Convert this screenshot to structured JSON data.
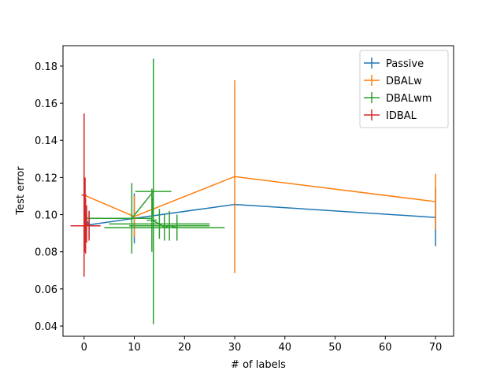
{
  "chart_data": {
    "type": "errorbar",
    "xlabel": "# of labels",
    "ylabel": "Test error",
    "xlim": [
      -4.2,
      73.6
    ],
    "ylim": [
      0.0345,
      0.191
    ],
    "xticks": [
      0,
      10,
      20,
      30,
      40,
      50,
      60,
      70
    ],
    "yticks": [
      0.04,
      0.06,
      0.08,
      {
        "value": 0.1,
        "label": "0.10"
      },
      0.12,
      0.14,
      0.16,
      0.18
    ],
    "legend": "upper right",
    "series": [
      {
        "name": "Passive",
        "color": "#1f77b4",
        "x": [
          0,
          1,
          10,
          30,
          70
        ],
        "values": [
          0.0995,
          0.0945,
          0.098,
          0.1055,
          0.0985
        ],
        "yerr": [
          0.002,
          0.0075,
          0.0135,
          0.001,
          0.0155
        ]
      },
      {
        "name": "DBALw",
        "color": "#ff7f0e",
        "x": [
          0,
          10,
          30,
          70
        ],
        "values": [
          0.1105,
          0.099,
          0.1205,
          0.107
        ],
        "yerr": [
          0.0095,
          0.011,
          0.052,
          0.015
        ]
      },
      {
        "name": "DBALwm",
        "color": "#2ca02c",
        "x": [
          0.5,
          9.5,
          13.8,
          13.5,
          15,
          16,
          17,
          18.5
        ],
        "values": [
          0.098,
          0.098,
          0.1125,
          0.097,
          0.095,
          0.093,
          0.094,
          0.093
        ],
        "yerr": [
          0.002,
          0.019,
          0.0715,
          0.017,
          0.008,
          0.007,
          0.008,
          0.007
        ],
        "xerr": [
          0.5,
          4,
          3.6,
          1,
          10,
          12,
          8,
          0.3
        ]
      },
      {
        "name": "IDBAL",
        "color": "#d62728",
        "x": [
          0,
          0.2,
          0.3,
          0.5,
          1
        ],
        "values": [
          0.1105,
          0.1,
          0.094,
          0.095,
          0.094
        ],
        "yerr": [
          0.044,
          0.02,
          0.015,
          0.01,
          0.008
        ],
        "xerr": [
          0.5,
          0.3,
          3,
          0.3,
          0.3
        ]
      }
    ]
  }
}
